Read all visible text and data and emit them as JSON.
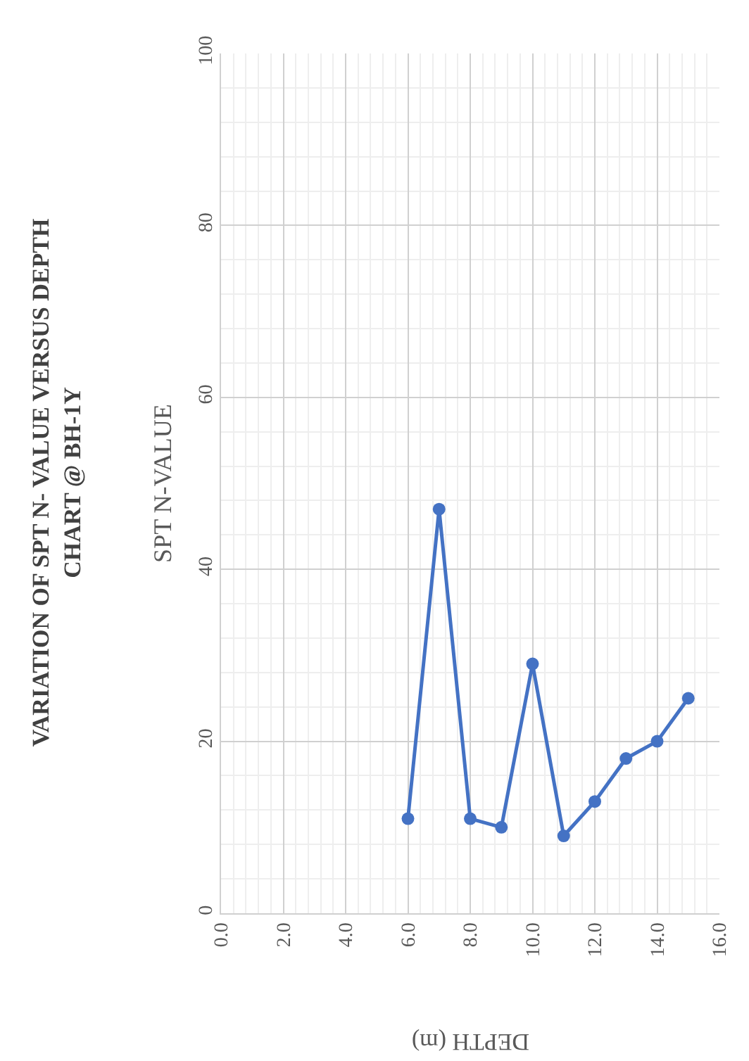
{
  "chart_data": {
    "type": "line",
    "title": "VARIATION OF SPT N- VALUE VERSUS DEPTH\nCHART @ BH-1Y",
    "xlabel": "DEPTH (m)",
    "ylabel": "SPT N-VALUE",
    "x": [
      6,
      7,
      8,
      9,
      10,
      11,
      12,
      13,
      14,
      15
    ],
    "series": [
      {
        "color": "#4472c4",
        "values": [
          11,
          47,
          11,
          10,
          29,
          9,
          13,
          18,
          20,
          25
        ]
      }
    ],
    "xlim": [
      0,
      16
    ],
    "xticks": [
      {
        "value": 0,
        "label": "0.0"
      },
      {
        "value": 2,
        "label": "2.0"
      },
      {
        "value": 4,
        "label": "4.0"
      },
      {
        "value": 6,
        "label": "6.0"
      },
      {
        "value": 8,
        "label": "8.0"
      },
      {
        "value": 10,
        "label": "10.0"
      },
      {
        "value": 12,
        "label": "12.0"
      },
      {
        "value": 14,
        "label": "14.0"
      },
      {
        "value": 16,
        "label": "16.0"
      }
    ],
    "ylim": [
      0,
      100
    ],
    "yticks": [
      0,
      20,
      40,
      60,
      80,
      100
    ],
    "grid": true,
    "marker": "circle",
    "line_style": "solid",
    "legend": false
  }
}
